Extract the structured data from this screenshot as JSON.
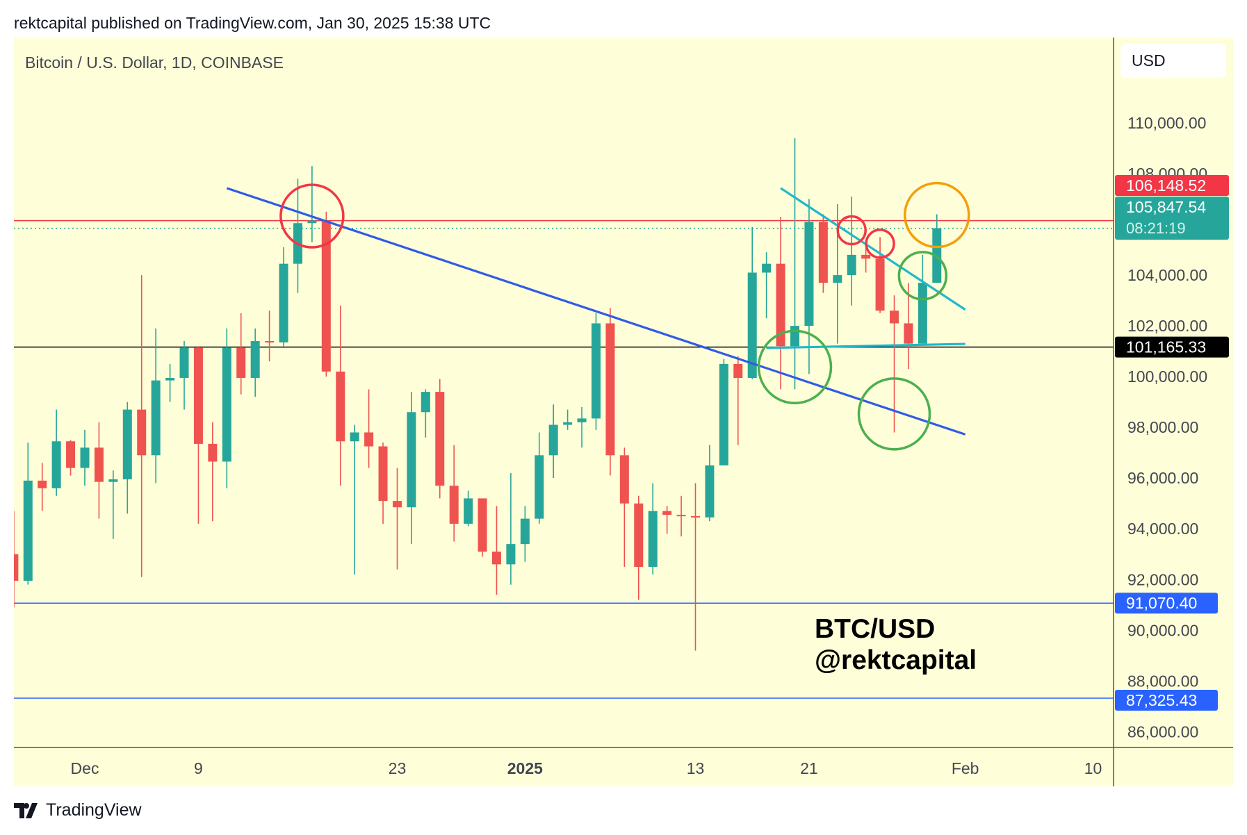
{
  "header": {
    "published": "rektcapital published on TradingView.com, Jan 30, 2025 15:38 UTC"
  },
  "footer": {
    "brand": "TradingView"
  },
  "chart_data": {
    "type": "candlestick",
    "title": "Bitcoin / U.S. Dollar, 1D, COINBASE",
    "currency": "USD",
    "watermark": [
      "BTC/USD",
      "@rektcapital"
    ],
    "ylim": [
      84800,
      112200
    ],
    "y_ticks": [
      "110,000.00",
      "108,000.00",
      "104,000.00",
      "102,000.00",
      "100,000.00",
      "98,000.00",
      "96,000.00",
      "94,000.00",
      "92,000.00",
      "90,000.00",
      "88,000.00",
      "86,000.00"
    ],
    "x_ticks": [
      {
        "date": "2024-12-01",
        "label": "Dec",
        "bold": false
      },
      {
        "date": "2024-12-09",
        "label": "9",
        "bold": false
      },
      {
        "date": "2024-12-23",
        "label": "23",
        "bold": false
      },
      {
        "date": "2025-01-01",
        "label": "2025",
        "bold": true
      },
      {
        "date": "2025-01-13",
        "label": "13",
        "bold": false
      },
      {
        "date": "2025-01-21",
        "label": "21",
        "bold": false
      },
      {
        "date": "2025-02-01",
        "label": "Feb",
        "bold": false
      },
      {
        "date": "2025-02-10",
        "label": "10",
        "bold": false
      }
    ],
    "colors": {
      "up": "#26a69a",
      "down": "#ef5350",
      "background": "#fefed8"
    },
    "candles_columns": [
      "date",
      "open",
      "high",
      "low",
      "close"
    ],
    "candles": [
      [
        "2024-11-26",
        93000,
        94700,
        90900,
        91950
      ],
      [
        "2024-11-27",
        91950,
        97400,
        91800,
        95900
      ],
      [
        "2024-11-28",
        95900,
        96600,
        94700,
        95600
      ],
      [
        "2024-11-29",
        95600,
        98700,
        95300,
        97450
      ],
      [
        "2024-11-30",
        97450,
        97500,
        96100,
        96400
      ],
      [
        "2024-12-01",
        96400,
        97900,
        95700,
        97200
      ],
      [
        "2024-12-02",
        97200,
        98200,
        94400,
        95850
      ],
      [
        "2024-12-03",
        95850,
        96300,
        93600,
        95950
      ],
      [
        "2024-12-04",
        95950,
        99000,
        94600,
        98700
      ],
      [
        "2024-12-05",
        98700,
        104000,
        92100,
        96900
      ],
      [
        "2024-12-06",
        96900,
        101900,
        95800,
        99850
      ],
      [
        "2024-12-07",
        99850,
        100500,
        99000,
        99950
      ],
      [
        "2024-12-08",
        99950,
        101400,
        98700,
        101150
      ],
      [
        "2024-12-09",
        101150,
        101200,
        94200,
        97350
      ],
      [
        "2024-12-10",
        97350,
        98200,
        94300,
        96650
      ],
      [
        "2024-12-11",
        96650,
        101900,
        95600,
        101150
      ],
      [
        "2024-12-12",
        101150,
        102500,
        99300,
        99950
      ],
      [
        "2024-12-13",
        99950,
        101900,
        99200,
        101400
      ],
      [
        "2024-12-14",
        101400,
        102600,
        100600,
        101350
      ],
      [
        "2024-12-15",
        101350,
        105100,
        101200,
        104450
      ],
      [
        "2024-12-16",
        104450,
        107800,
        103300,
        106050
      ],
      [
        "2024-12-17",
        106050,
        108300,
        105300,
        106150
      ],
      [
        "2024-12-18",
        106150,
        106500,
        100000,
        100200
      ],
      [
        "2024-12-19",
        100200,
        102800,
        95700,
        97450
      ],
      [
        "2024-12-20",
        97450,
        98100,
        92200,
        97800
      ],
      [
        "2024-12-21",
        97800,
        99500,
        96400,
        97250
      ],
      [
        "2024-12-22",
        97250,
        97400,
        94200,
        95100
      ],
      [
        "2024-12-23",
        95100,
        96400,
        92400,
        94850
      ],
      [
        "2024-12-24",
        94850,
        99400,
        93400,
        98600
      ],
      [
        "2024-12-25",
        98600,
        99500,
        97600,
        99400
      ],
      [
        "2024-12-26",
        99400,
        99900,
        95200,
        95700
      ],
      [
        "2024-12-27",
        95700,
        97300,
        93500,
        94200
      ],
      [
        "2024-12-28",
        94200,
        95500,
        94100,
        95200
      ],
      [
        "2024-12-29",
        95200,
        95200,
        92900,
        93100
      ],
      [
        "2024-12-30",
        93100,
        94900,
        91400,
        92600
      ],
      [
        "2024-12-31",
        92600,
        96200,
        91800,
        93400
      ],
      [
        "2025-01-01",
        93400,
        94900,
        92700,
        94400
      ],
      [
        "2025-01-02",
        94400,
        97800,
        94200,
        96900
      ],
      [
        "2025-01-03",
        96900,
        98900,
        96000,
        98100
      ],
      [
        "2025-01-04",
        98100,
        98700,
        97900,
        98200
      ],
      [
        "2025-01-05",
        98200,
        98800,
        97200,
        98350
      ],
      [
        "2025-01-06",
        98350,
        102500,
        97900,
        102100
      ],
      [
        "2025-01-07",
        102100,
        102700,
        96100,
        96900
      ],
      [
        "2025-01-08",
        96900,
        97200,
        92500,
        95000
      ],
      [
        "2025-01-09",
        95000,
        95300,
        91200,
        92500
      ],
      [
        "2025-01-10",
        92500,
        95800,
        92200,
        94700
      ],
      [
        "2025-01-11",
        94700,
        94900,
        93800,
        94550
      ],
      [
        "2025-01-12",
        94550,
        95300,
        93700,
        94500
      ],
      [
        "2025-01-13",
        94500,
        95800,
        89200,
        94450
      ],
      [
        "2025-01-14",
        94450,
        97300,
        94300,
        96500
      ],
      [
        "2025-01-15",
        96500,
        100700,
        96500,
        100500
      ],
      [
        "2025-01-16",
        100500,
        100800,
        97300,
        99950
      ],
      [
        "2025-01-17",
        99950,
        105900,
        99900,
        104100
      ],
      [
        "2025-01-18",
        104100,
        104900,
        102300,
        104450
      ],
      [
        "2025-01-19",
        104450,
        106300,
        99500,
        101200
      ],
      [
        "2025-01-20",
        101200,
        109400,
        99500,
        102000
      ],
      [
        "2025-01-21",
        102000,
        107000,
        100100,
        106100
      ],
      [
        "2025-01-22",
        106100,
        106400,
        103300,
        103700
      ],
      [
        "2025-01-23",
        103700,
        106800,
        101300,
        104000
      ],
      [
        "2025-01-24",
        104000,
        107100,
        102800,
        104800
      ],
      [
        "2025-01-25",
        104800,
        105300,
        104100,
        104650
      ],
      [
        "2025-01-26",
        104650,
        105500,
        102500,
        102600
      ],
      [
        "2025-01-27",
        102600,
        103200,
        97800,
        102100
      ],
      [
        "2025-01-28",
        102100,
        103700,
        100300,
        101300
      ],
      [
        "2025-01-29",
        101300,
        104800,
        101300,
        103700
      ],
      [
        "2025-01-30",
        103700,
        106400,
        103700,
        105850
      ]
    ],
    "horizontal_lines": [
      {
        "price": 106148.52,
        "label": "106,148.52",
        "color": "#f23645",
        "style": "solid"
      },
      {
        "price": 105847.54,
        "label": "105,847.54",
        "sublabel": "08:21:19",
        "color": "#26a69a",
        "style": "dotted"
      },
      {
        "price": 101165.33,
        "label": "101,165.33",
        "color": "#000000",
        "style": "solid"
      },
      {
        "price": 91070.4,
        "label": "91,070.40",
        "color": "#2962ff",
        "style": "solid"
      },
      {
        "price": 87325.43,
        "label": "87,325.43",
        "color": "#2962ff",
        "style": "solid"
      }
    ],
    "trendlines": [
      {
        "from": [
          "2024-12-11",
          107430
        ],
        "to": [
          "2025-02-01",
          97720
        ],
        "color": "#2f5be8"
      },
      {
        "from": [
          "2025-01-19",
          107430
        ],
        "to": [
          "2025-02-01",
          102640
        ],
        "color": "#1fb8cd"
      },
      {
        "from": [
          "2025-01-18",
          101130
        ],
        "to": [
          "2025-02-01",
          101290
        ],
        "color": "#1fb8cd"
      }
    ],
    "circles": [
      {
        "date": "2024-12-17",
        "price": 106330,
        "color": "#f23645"
      },
      {
        "date": "2025-01-24",
        "price": 105770,
        "color": "#f23645"
      },
      {
        "date": "2025-01-26",
        "price": 105240,
        "color": "#f23645"
      },
      {
        "date": "2025-01-30",
        "price": 106370,
        "color": "#f59e0b"
      },
      {
        "date": "2025-01-29",
        "price": 103980,
        "color": "#4caf50"
      },
      {
        "date": "2025-01-20",
        "price": 100380,
        "color": "#4caf50"
      },
      {
        "date": "2025-01-27",
        "price": 98530,
        "color": "#4caf50"
      }
    ]
  }
}
